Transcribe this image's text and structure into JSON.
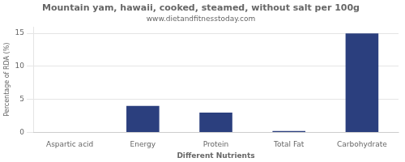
{
  "chart_data": {
    "type": "bar",
    "title": "Mountain yam, hawaii, cooked, steamed, without salt per 100g",
    "subtitle": "www.dietandfitnesstoday.com",
    "categories": [
      "Aspartic acid",
      "Energy",
      "Protein",
      "Total Fat",
      "Carbohydrate"
    ],
    "values": [
      0.0,
      4.0,
      3.0,
      0.2,
      15.0
    ],
    "color": "#2b3f7e",
    "xlabel": "Different Nutrients",
    "ylabel": "Percentage of RDA (%)",
    "ylim": [
      0,
      16
    ],
    "yticks": [
      0,
      5,
      10,
      15
    ],
    "grid": true
  }
}
